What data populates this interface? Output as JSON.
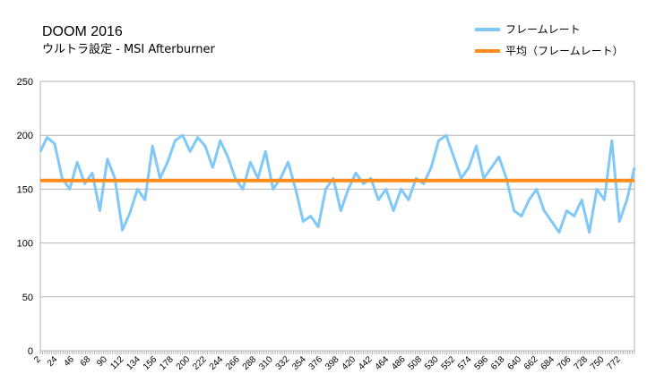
{
  "chart_data": {
    "type": "line",
    "title": "DOOM 2016",
    "subtitle": "ウルトラ設定 - MSI Afterburner",
    "xlabel": "",
    "ylabel": "",
    "ylim": [
      0,
      250
    ],
    "yticks": [
      0,
      50,
      100,
      150,
      200,
      250
    ],
    "xticks": [
      2,
      24,
      46,
      68,
      90,
      112,
      134,
      156,
      178,
      200,
      222,
      244,
      266,
      288,
      310,
      332,
      354,
      376,
      398,
      420,
      442,
      464,
      486,
      508,
      530,
      552,
      574,
      596,
      618,
      640,
      662,
      684,
      706,
      728,
      750,
      772
    ],
    "xlim": [
      1,
      790
    ],
    "grid": true,
    "legend_position": "top-right",
    "series": [
      {
        "name": "フレームレート",
        "color": "#7fc8f8",
        "x": [
          1,
          10,
          20,
          30,
          40,
          50,
          60,
          70,
          80,
          90,
          100,
          110,
          120,
          130,
          140,
          150,
          160,
          170,
          180,
          190,
          200,
          210,
          220,
          230,
          240,
          250,
          260,
          270,
          280,
          290,
          300,
          310,
          320,
          330,
          340,
          350,
          360,
          370,
          380,
          390,
          400,
          410,
          420,
          430,
          440,
          450,
          460,
          470,
          480,
          490,
          500,
          510,
          520,
          530,
          540,
          550,
          560,
          570,
          580,
          590,
          600,
          610,
          620,
          630,
          640,
          650,
          660,
          670,
          680,
          690,
          700,
          710,
          720,
          730,
          740,
          750,
          760,
          770,
          780,
          790
        ],
        "values": [
          185,
          198,
          192,
          160,
          150,
          175,
          155,
          165,
          130,
          178,
          160,
          112,
          128,
          150,
          140,
          190,
          160,
          175,
          195,
          200,
          185,
          198,
          190,
          170,
          195,
          180,
          160,
          150,
          175,
          160,
          185,
          150,
          160,
          175,
          150,
          120,
          125,
          115,
          150,
          160,
          130,
          150,
          165,
          155,
          160,
          140,
          150,
          130,
          150,
          140,
          160,
          155,
          170,
          195,
          200,
          180,
          160,
          170,
          190,
          160,
          170,
          180,
          160,
          130,
          125,
          140,
          150,
          130,
          120,
          110,
          130,
          125,
          140,
          110,
          150,
          140,
          195,
          120,
          140,
          170
        ]
      },
      {
        "name": "平均（フレームレート）",
        "color": "#ff8c1a",
        "x": [
          1,
          790
        ],
        "values": [
          158,
          158
        ]
      }
    ]
  }
}
